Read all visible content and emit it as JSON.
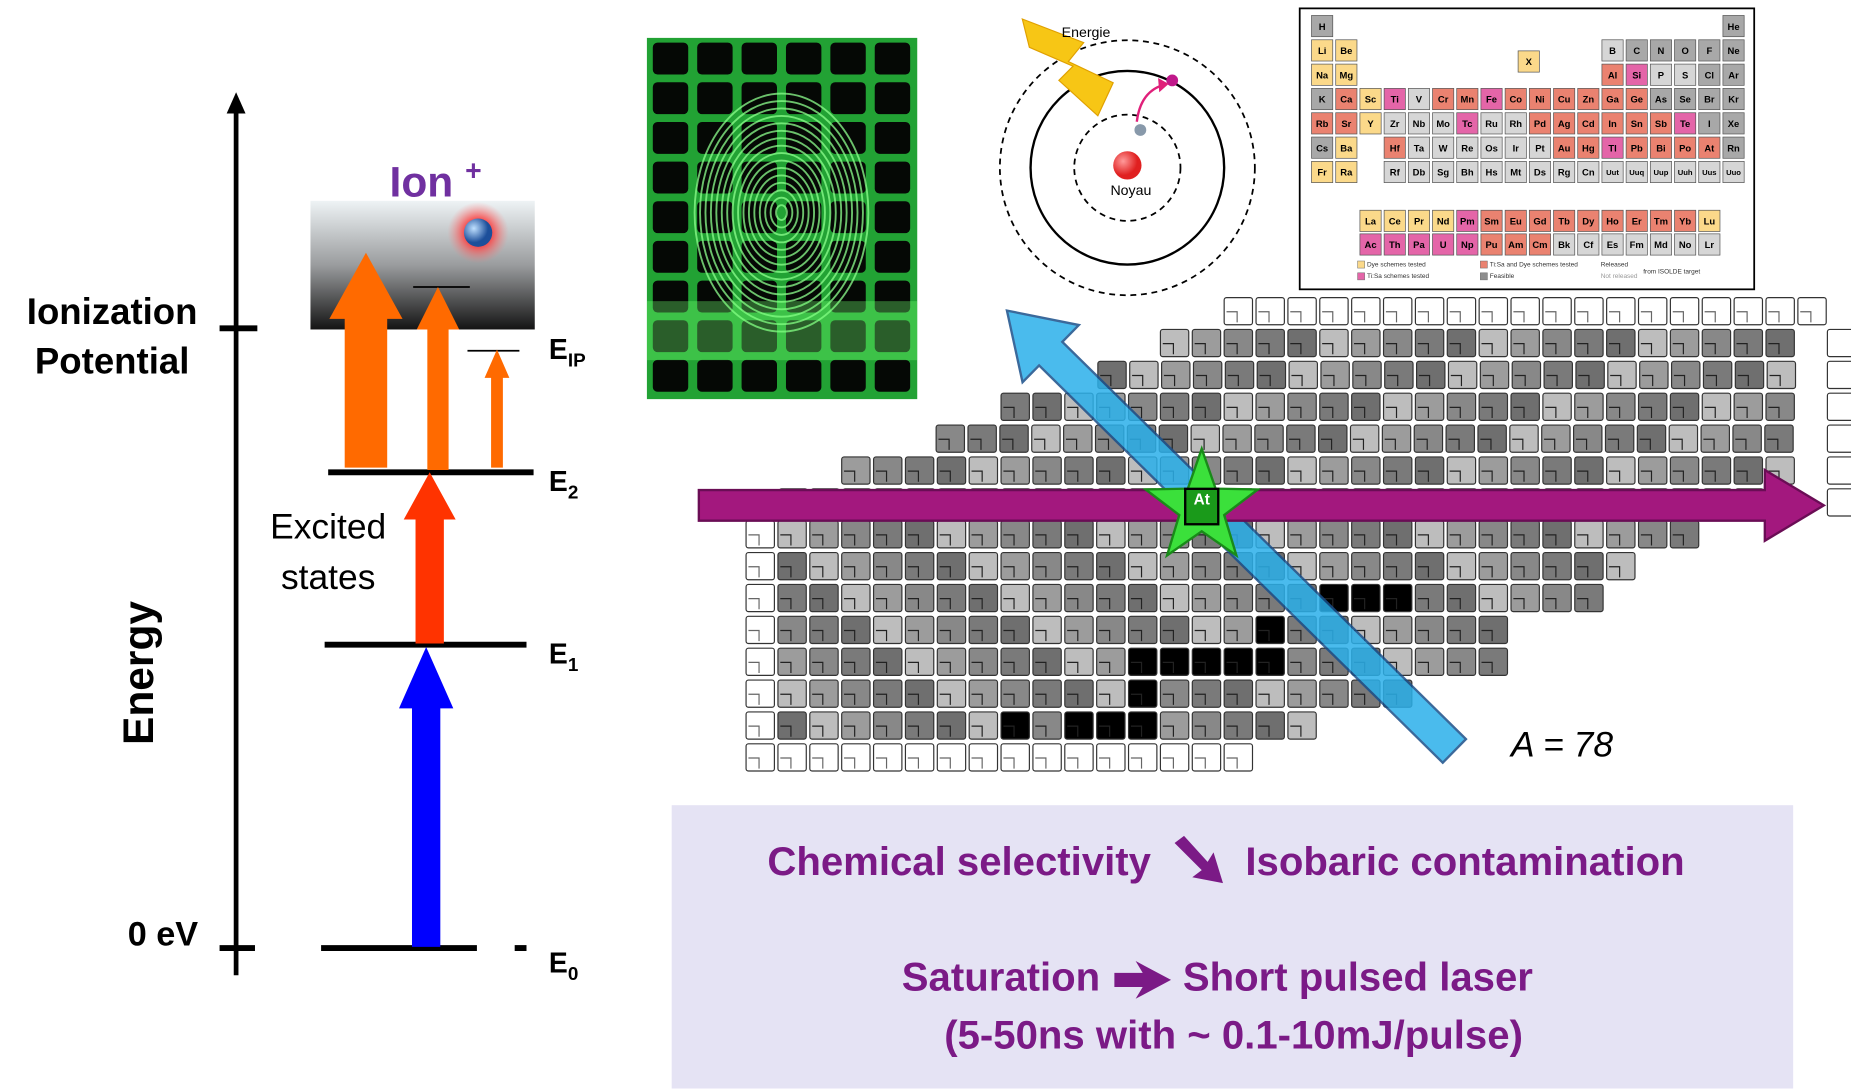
{
  "energy_diagram": {
    "axis_label": "Energy",
    "ionization_label": [
      "Ionization",
      "Potential"
    ],
    "zero_label": "0 eV",
    "ion_label": "Ion",
    "ion_charge": "+",
    "excited_label": [
      "Excited",
      "states"
    ],
    "levels": [
      {
        "main": "E",
        "sub": "IP"
      },
      {
        "main": "E",
        "sub": "2"
      },
      {
        "main": "E",
        "sub": "1"
      },
      {
        "main": "E",
        "sub": "0"
      }
    ]
  },
  "atom": {
    "energy_label": "Energie",
    "nucleus_label": "Noyau"
  },
  "periodic_table": {
    "rows": [
      [
        "H",
        "He"
      ],
      [
        "Li",
        "Be",
        "B",
        "C",
        "N",
        "O",
        "F",
        "Ne"
      ],
      [
        "Na",
        "Mg",
        "Al",
        "Si",
        "P",
        "S",
        "Cl",
        "Ar"
      ],
      [
        "K",
        "Ca",
        "Sc",
        "Ti",
        "V",
        "Cr",
        "Mn",
        "Fe",
        "Co",
        "Ni",
        "Cu",
        "Zn",
        "Ga",
        "Ge",
        "As",
        "Se",
        "Br",
        "Kr"
      ],
      [
        "Rb",
        "Sr",
        "Y",
        "Zr",
        "Nb",
        "Mo",
        "Tc",
        "Ru",
        "Rh",
        "Pd",
        "Ag",
        "Cd",
        "In",
        "Sn",
        "Sb",
        "Te",
        "I",
        "Xe"
      ],
      [
        "Cs",
        "Ba",
        "Hf",
        "Ta",
        "W",
        "Re",
        "Os",
        "Ir",
        "Pt",
        "Au",
        "Hg",
        "Tl",
        "Pb",
        "Bi",
        "Po",
        "At",
        "Rn"
      ],
      [
        "Fr",
        "Ra",
        "Rf",
        "Db",
        "Sg",
        "Bh",
        "Hs",
        "Mt",
        "Ds",
        "Rg",
        "Cn",
        "Uut",
        "Uuq",
        "Uup",
        "Uuh",
        "Uus",
        "Uuo"
      ]
    ],
    "marker": "X",
    "lanthanides": [
      "La",
      "Ce",
      "Pr",
      "Nd",
      "Pm",
      "Sm",
      "Eu",
      "Gd",
      "Tb",
      "Dy",
      "Ho",
      "Er",
      "Tm",
      "Yb",
      "Lu"
    ],
    "actinides": [
      "Ac",
      "Th",
      "Pa",
      "U",
      "Np",
      "Pu",
      "Am",
      "Cm",
      "Bk",
      "Cf",
      "Es",
      "Fm",
      "Md",
      "No",
      "Lr"
    ],
    "legend": [
      "Dye schemes tested",
      "Ti:Sa schemes tested",
      "Ti:Sa and Dye schemes tested",
      "Feasible",
      "Released",
      "Not released",
      "from ISOLDE target"
    ]
  },
  "nuclide_chart": {
    "element": "At",
    "mass_label": "A = 78"
  },
  "summary": {
    "line1": {
      "left": "Chemical selectivity",
      "right": "Isobaric contamination"
    },
    "line2": {
      "left": "Saturation",
      "right": "Short pulsed laser"
    },
    "line3": "(5-50ns with ~ 0.1-10mJ/pulse)"
  }
}
